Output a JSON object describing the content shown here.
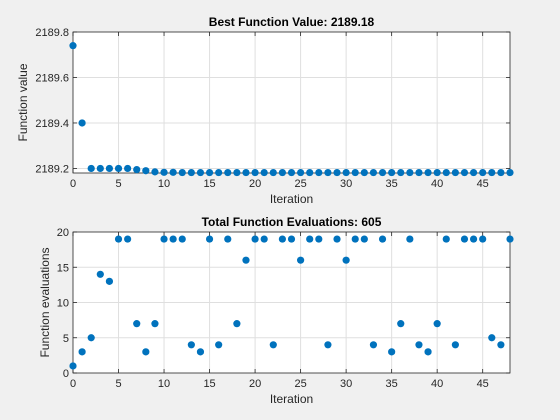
{
  "colors": {
    "figure_background": "#f0f0f0",
    "axes_background": "#ffffff",
    "marker": "#0072bd",
    "grid": "#dfdfdf",
    "axis": "#262626"
  },
  "chart_data": [
    {
      "type": "scatter",
      "title": "Best Function Value: 2189.18",
      "xlabel": "Iteration",
      "ylabel": "Function value",
      "xlim": [
        0,
        48
      ],
      "ylim": [
        2189.18,
        2189.8
      ],
      "xticks": [
        0,
        5,
        10,
        15,
        20,
        25,
        30,
        35,
        40,
        45
      ],
      "yticks": [
        2189.2,
        2189.4,
        2189.6,
        2189.8
      ],
      "ytick_labels": [
        "2189.2",
        "2189.4",
        "2189.6",
        "2189.8"
      ],
      "grid": true,
      "series": [
        {
          "x": [
            0,
            1,
            2,
            3,
            4,
            5,
            6,
            7,
            8,
            9,
            10,
            11,
            12,
            13,
            14,
            15,
            16,
            17,
            18,
            19,
            20,
            21,
            22,
            23,
            24,
            25,
            26,
            27,
            28,
            29,
            30,
            31,
            32,
            33,
            34,
            35,
            36,
            37,
            38,
            39,
            40,
            41,
            42,
            43,
            44,
            45,
            46,
            47,
            48
          ],
          "values": [
            2189.74,
            2189.4,
            2189.2,
            2189.2,
            2189.2,
            2189.2,
            2189.2,
            2189.195,
            2189.19,
            2189.185,
            2189.183,
            2189.183,
            2189.182,
            2189.182,
            2189.182,
            2189.182,
            2189.182,
            2189.182,
            2189.182,
            2189.182,
            2189.182,
            2189.182,
            2189.182,
            2189.182,
            2189.182,
            2189.182,
            2189.182,
            2189.182,
            2189.182,
            2189.182,
            2189.182,
            2189.182,
            2189.182,
            2189.182,
            2189.182,
            2189.182,
            2189.182,
            2189.182,
            2189.182,
            2189.182,
            2189.182,
            2189.182,
            2189.182,
            2189.182,
            2189.182,
            2189.182,
            2189.182,
            2189.182,
            2189.182
          ]
        }
      ]
    },
    {
      "type": "scatter",
      "title": "Total Function Evaluations: 605",
      "xlabel": "Iteration",
      "ylabel": "Function evaluations",
      "xlim": [
        0,
        48
      ],
      "ylim": [
        0,
        20
      ],
      "xticks": [
        0,
        5,
        10,
        15,
        20,
        25,
        30,
        35,
        40,
        45
      ],
      "yticks": [
        0,
        5,
        10,
        15,
        20
      ],
      "ytick_labels": [
        "0",
        "5",
        "10",
        "15",
        "20"
      ],
      "grid": true,
      "series": [
        {
          "x": [
            0,
            1,
            2,
            3,
            4,
            5,
            6,
            7,
            8,
            9,
            10,
            11,
            12,
            13,
            14,
            15,
            16,
            17,
            18,
            19,
            20,
            21,
            22,
            23,
            24,
            25,
            26,
            27,
            28,
            29,
            30,
            31,
            32,
            33,
            34,
            35,
            36,
            37,
            38,
            39,
            40,
            41,
            42,
            43,
            44,
            45,
            46,
            47,
            48
          ],
          "values": [
            1,
            3,
            5,
            14,
            13,
            19,
            19,
            7,
            3,
            7,
            19,
            19,
            19,
            4,
            3,
            19,
            4,
            19,
            7,
            16,
            19,
            19,
            4,
            19,
            19,
            16,
            19,
            19,
            4,
            19,
            16,
            19,
            19,
            4,
            19,
            3,
            7,
            19,
            4,
            3,
            7,
            19,
            4,
            19,
            19,
            19,
            5,
            4,
            19
          ]
        }
      ]
    }
  ]
}
